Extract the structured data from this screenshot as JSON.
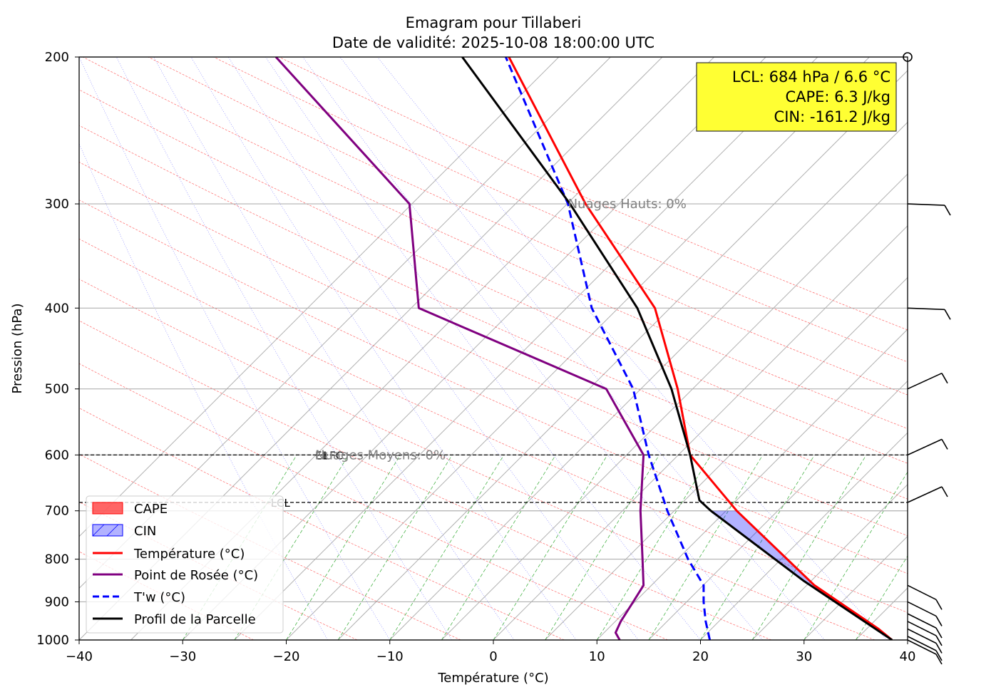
{
  "chart_data": {
    "type": "line",
    "chart_kind": "emagram",
    "title": "Emagram pour Tillaberi",
    "subtitle": "Date de validité: 2025-10-08 18:00:00 UTC",
    "xlabel": "Température (°C)",
    "ylabel": "Pression (hPa)",
    "xlim": [
      -40,
      40
    ],
    "ylim": [
      1000,
      200
    ],
    "y_scale": "log",
    "grid": true,
    "x_ticks": [
      -40,
      -30,
      -20,
      -10,
      0,
      10,
      20,
      30,
      40
    ],
    "y_ticks": [
      1000,
      900,
      800,
      700,
      600,
      500,
      400,
      300,
      200
    ],
    "series": [
      {
        "name": "Température (°C)",
        "color": "#ff0000",
        "style": "solid",
        "points": [
          [
            38.5,
            1000
          ],
          [
            37.2,
            970
          ],
          [
            31,
            860
          ],
          [
            23.5,
            700
          ],
          [
            19,
            600
          ],
          [
            17.8,
            500
          ],
          [
            15.6,
            400
          ],
          [
            8.9,
            300
          ],
          [
            1.5,
            200
          ]
        ]
      },
      {
        "name": "Point de Rosée (°C)",
        "color": "#800080",
        "style": "solid",
        "points": [
          [
            12.2,
            1000
          ],
          [
            11.8,
            980
          ],
          [
            12.3,
            950
          ],
          [
            13.5,
            900
          ],
          [
            14.5,
            860
          ],
          [
            14.4,
            800
          ],
          [
            14.2,
            700
          ],
          [
            14.5,
            600
          ],
          [
            10.9,
            500
          ],
          [
            -7.2,
            400
          ],
          [
            -8.1,
            300
          ],
          [
            -21,
            200
          ]
        ]
      },
      {
        "name": "T'w (°C)",
        "color": "#0000ff",
        "style": "dashed",
        "points": [
          [
            20.9,
            1000
          ],
          [
            20.5,
            950
          ],
          [
            20.3,
            900
          ],
          [
            20.3,
            860
          ],
          [
            18.8,
            800
          ],
          [
            16.8,
            700
          ],
          [
            15,
            600
          ],
          [
            13.5,
            500
          ],
          [
            9.5,
            400
          ],
          [
            7.2,
            300
          ],
          [
            1.2,
            200
          ]
        ]
      },
      {
        "name": "Profil de la Parcelle",
        "color": "#000000",
        "style": "solid",
        "points": [
          [
            38.5,
            1000
          ],
          [
            30,
            850
          ],
          [
            21,
            700
          ],
          [
            19.9,
            680
          ],
          [
            19,
            600
          ],
          [
            17.2,
            500
          ],
          [
            13.9,
            400
          ],
          [
            7.4,
            300
          ],
          [
            -3,
            200
          ]
        ]
      }
    ],
    "fills": [
      {
        "name": "CAPE",
        "color": "#ff0000",
        "opacity": 0.6
      },
      {
        "name": "CIN",
        "color": "#0000ff",
        "opacity": 0.3
      }
    ],
    "annotations": [
      {
        "text": "LCL",
        "x": -21.5,
        "y": 684,
        "color": "#000000"
      },
      {
        "text": "EL",
        "x": -17.2,
        "y": 600,
        "color": "#000000"
      },
      {
        "text": "LFC",
        "x": -16.4,
        "y": 600,
        "color": "#000000"
      },
      {
        "text": "Nuages Hauts: 0%",
        "x": 7.2,
        "y": 300,
        "color": "#808080"
      },
      {
        "text": "Nuages Moyens: 0%",
        "x": -17.2,
        "y": 600,
        "color": "#808080"
      }
    ],
    "reference_lines": [
      {
        "label": "LCL",
        "pressure": 684,
        "style": "dashed"
      },
      {
        "label": "EL",
        "pressure": 600,
        "style": "dashed"
      }
    ],
    "info_box": [
      "LCL: 684 hPa / 6.6 °C",
      "CAPE: 6.3 J/kg",
      "CIN: -161.2 J/kg"
    ],
    "info_box_color": "#ffff33",
    "legend_position": "lower left",
    "wind_barbs_pressures": [
      300,
      400,
      500,
      600,
      684,
      860,
      900,
      930,
      950,
      970,
      990,
      1000
    ]
  }
}
